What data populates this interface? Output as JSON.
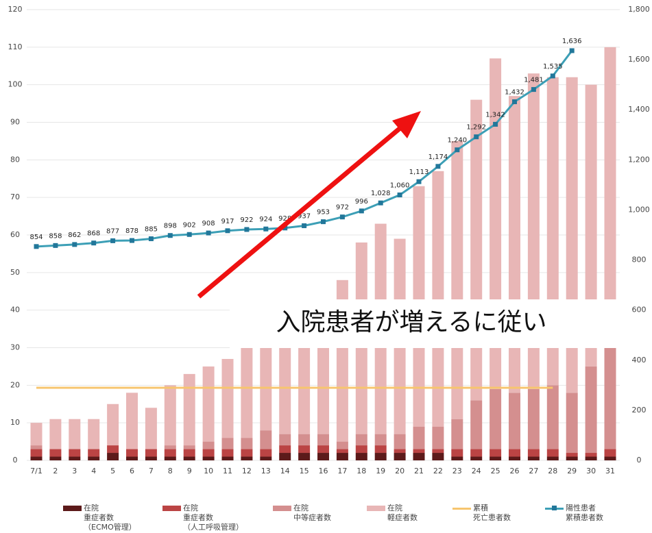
{
  "chart_data": {
    "type": "bar",
    "categories": [
      "7/1",
      "2",
      "3",
      "4",
      "5",
      "6",
      "7",
      "8",
      "9",
      "10",
      "11",
      "12",
      "13",
      "14",
      "15",
      "16",
      "17",
      "18",
      "19",
      "20",
      "21",
      "22",
      "23",
      "24",
      "25",
      "26",
      "27",
      "28",
      "29",
      "30",
      "31"
    ],
    "ylim": [
      0,
      120
    ],
    "yticks": [
      0,
      10,
      20,
      30,
      40,
      50,
      60,
      70,
      80,
      90,
      100,
      110,
      120
    ],
    "y2lim": [
      0,
      1800
    ],
    "y2ticks": [
      0,
      200,
      400,
      600,
      800,
      {
        "value": 1000,
        "label": "1,000"
      },
      {
        "value": 1200,
        "label": "1,200"
      },
      {
        "value": 1400,
        "label": "1,400"
      },
      {
        "value": 1600,
        "label": "1,600"
      },
      {
        "value": 1800,
        "label": "1,800"
      }
    ],
    "grid": true,
    "annotation": "入院患者が増えるに従い",
    "series": [
      {
        "name": "在院\n重症者数\n（ECMO管理）",
        "color": "#5c1a1a",
        "type": "bar",
        "values": [
          1,
          1,
          1,
          1,
          2,
          1,
          1,
          1,
          1,
          1,
          1,
          1,
          1,
          2,
          2,
          2,
          2,
          2,
          2,
          2,
          2,
          2,
          1,
          1,
          1,
          1,
          1,
          1,
          1,
          1,
          1
        ]
      },
      {
        "name": "在院\n重症者数\n（人工呼吸管理）",
        "color": "#bb4444",
        "type": "bar",
        "values": [
          2,
          2,
          2,
          2,
          2,
          2,
          2,
          2,
          2,
          2,
          2,
          2,
          2,
          2,
          2,
          2,
          1,
          2,
          2,
          1,
          1,
          1,
          2,
          2,
          2,
          2,
          2,
          2,
          1,
          1,
          2
        ]
      },
      {
        "name": "在院\n中等症者数",
        "color": "#d48f8f",
        "type": "bar",
        "values": [
          1,
          0,
          0,
          0,
          0,
          0,
          0,
          1,
          1,
          2,
          3,
          3,
          5,
          3,
          3,
          3,
          2,
          3,
          3,
          4,
          6,
          6,
          8,
          13,
          16,
          15,
          16,
          17,
          16,
          23,
          28
        ]
      },
      {
        "name": "在院\n軽症者数",
        "color": "#e8b6b6",
        "type": "bar",
        "values": [
          6,
          8,
          8,
          8,
          11,
          15,
          11,
          16,
          19,
          20,
          21,
          25,
          25,
          28,
          30,
          33,
          43,
          51,
          56,
          52,
          64,
          68,
          74,
          80,
          88,
          79,
          84,
          82,
          84,
          75,
          79
        ]
      },
      {
        "name": "累積\n死亡患者数",
        "color": "#f7c56e",
        "type": "line",
        "axis": "y2",
        "values": [
          290,
          290,
          290,
          290,
          290,
          290,
          290,
          290,
          290,
          290,
          290,
          290,
          290,
          290,
          290,
          290,
          290,
          290,
          290,
          290,
          290,
          290,
          290,
          290,
          290,
          290,
          290,
          290,
          null,
          null,
          null
        ]
      },
      {
        "name": "陽性患者\n累積患者数",
        "color": "#3c9fb6",
        "type": "line",
        "axis": "y2",
        "markers": true,
        "values": [
          854,
          858,
          862,
          868,
          877,
          878,
          885,
          898,
          902,
          908,
          917,
          922,
          924,
          928,
          937,
          953,
          972,
          996,
          1028,
          1060,
          1113,
          1174,
          1240,
          1292,
          1342,
          1432,
          1481,
          1535,
          1636,
          null,
          null
        ],
        "value_labels": [
          "854",
          "858",
          "862",
          "868",
          "877",
          "878",
          "885",
          "898",
          "902",
          "908",
          "917",
          "922",
          "924",
          "928",
          "937",
          "953",
          "972",
          "996",
          "1,028",
          "1,060",
          "1,113",
          "1,174",
          "1,240",
          "1,292",
          "1,342",
          "1,432",
          "1,481",
          "1,535",
          "1,636",
          null,
          null
        ]
      }
    ]
  }
}
